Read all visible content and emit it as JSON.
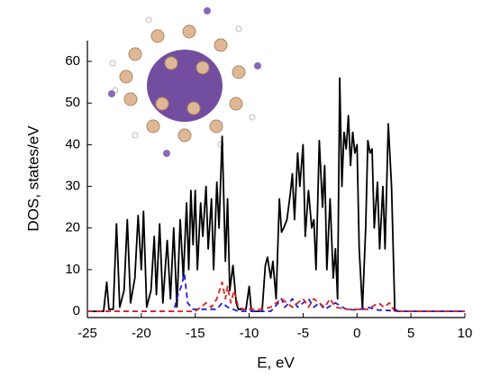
{
  "chart_data": {
    "type": "line",
    "xlabel": "E, eV",
    "ylabel": "DOS, states/eV",
    "xlim": [
      -25,
      10
    ],
    "xticks": [
      -25,
      -20,
      -15,
      -10,
      -5,
      0,
      5,
      10
    ],
    "ylim": [
      -1.5,
      65
    ],
    "yticks": [
      0,
      10,
      20,
      30,
      40,
      50,
      60
    ],
    "series": [
      {
        "color": "#000000",
        "dash": "none",
        "x": [
          -25,
          -23.5,
          -23.2,
          -23,
          -22.6,
          -22.3,
          -22,
          -21.6,
          -21.3,
          -21,
          -20.6,
          -20.3,
          -20,
          -19.8,
          -19.5,
          -19.1,
          -18.8,
          -18.6,
          -18.3,
          -18,
          -17.6,
          -17.3,
          -17,
          -16.7,
          -16.4,
          -16.1,
          -15.8,
          -15.6,
          -15.4,
          -15.2,
          -15,
          -14.8,
          -14.5,
          -14.3,
          -14,
          -13.8,
          -13.5,
          -13.3,
          -13,
          -12.8,
          -12.5,
          -12.2,
          -12,
          -11.8,
          -11.5,
          -11.2,
          -11,
          -10.3,
          -10,
          -9.8,
          -8.8,
          -8.5,
          -8.3,
          -8,
          -7.8,
          -7.5,
          -7.2,
          -7,
          -6.8,
          -6.5,
          -6.2,
          -6,
          -5.8,
          -5.5,
          -5.3,
          -5,
          -4.8,
          -4.5,
          -4.2,
          -4,
          -3.8,
          -3.5,
          -3.2,
          -3,
          -2.8,
          -2.5,
          -2.2,
          -2,
          -1.8,
          -1.6,
          -1.4,
          -1.2,
          -1,
          -0.8,
          -0.6,
          -0.4,
          -0.2,
          0,
          0.2,
          0.5,
          0.8,
          1,
          1.2,
          1.4,
          1.6,
          1.9,
          2.1,
          2.4,
          2.6,
          2.9,
          3.2,
          3.5,
          3.8,
          10
        ],
        "values": [
          0,
          0,
          7,
          0.5,
          0.5,
          21,
          1,
          5,
          22,
          2,
          8,
          23,
          10,
          24,
          1,
          5,
          18,
          4,
          21,
          2,
          17,
          3,
          20,
          1,
          22,
          8,
          26,
          10,
          29,
          16,
          29,
          10,
          26,
          18,
          30,
          15,
          27,
          10,
          31,
          20,
          42,
          12,
          27,
          5,
          11,
          2,
          0.5,
          0.5,
          6,
          0,
          0,
          11,
          13,
          8,
          12,
          3,
          27,
          19,
          20,
          22,
          28,
          33,
          22,
          38,
          30,
          40,
          18,
          29,
          20,
          22,
          10,
          41,
          25,
          35,
          10,
          27,
          8,
          15,
          3,
          56,
          30,
          43,
          39,
          47,
          35,
          43,
          38,
          40,
          15,
          0.5,
          20,
          41,
          38,
          39,
          20,
          31,
          15,
          30,
          15,
          45,
          30,
          0.5,
          0,
          0
        ]
      },
      {
        "color": "#1f1fe0",
        "dash": "6,4",
        "x": [
          -25,
          -17,
          -16.6,
          -16.3,
          -16,
          -15.7,
          -15.2,
          -13,
          -12.5,
          -12,
          -11,
          -8,
          -7.3,
          -7,
          -6.7,
          -6.3,
          -6,
          -5.5,
          -5,
          -4.5,
          -4,
          -3.5,
          -3,
          -2,
          -1,
          0,
          1,
          2,
          3,
          4,
          10
        ],
        "values": [
          0,
          0,
          4,
          6,
          9,
          2,
          0.5,
          0.5,
          2,
          1,
          0,
          0,
          2,
          3,
          1,
          2,
          3,
          1,
          2,
          3,
          1,
          2,
          0.5,
          2,
          0.5,
          0.3,
          1,
          0.3,
          0.2,
          0,
          0
        ]
      },
      {
        "color": "#e01f1f",
        "dash": "6,4",
        "x": [
          -25,
          -15,
          -14.5,
          -14,
          -13.5,
          -13,
          -12.5,
          -12.2,
          -12,
          -11.7,
          -11.4,
          -11,
          -10.5,
          -9,
          -8,
          -7.5,
          -7,
          -6.5,
          -6,
          -5.5,
          -5,
          -4.5,
          -4,
          -3.5,
          -3,
          -2.5,
          -2,
          -1,
          0,
          1,
          2,
          2.5,
          3,
          3.5,
          10
        ],
        "values": [
          0,
          0,
          1,
          2,
          1,
          3,
          7,
          3,
          6,
          2,
          5,
          1,
          0.5,
          0.5,
          1,
          2,
          3,
          2,
          1,
          2,
          3,
          1,
          3,
          2,
          1,
          3,
          1,
          0.5,
          0.5,
          0.5,
          2,
          1,
          2,
          0,
          0
        ]
      }
    ]
  }
}
